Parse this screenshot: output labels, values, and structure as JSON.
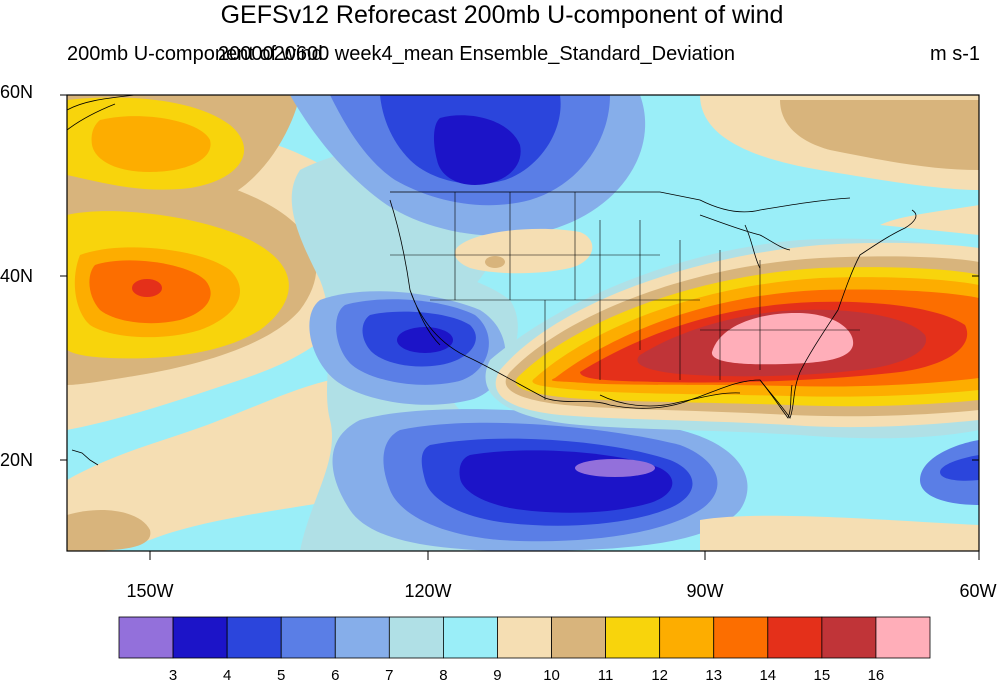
{
  "title": "GEFSv12 Reforecast 200mb U-component of wind",
  "subtitle_left": "200mb U-component of wind",
  "subtitle_center": "2000020600 week4_mean Ensemble_Standard_Deviation",
  "units": "m s-1",
  "lat_labels": [
    "60N",
    "40N",
    "20N"
  ],
  "lon_labels": [
    "150W",
    "120W",
    "90W",
    "60W"
  ],
  "colorbar": {
    "levels": [
      "3",
      "4",
      "5",
      "6",
      "7",
      "8",
      "9",
      "10",
      "11",
      "12",
      "13",
      "14",
      "15",
      "16"
    ],
    "colors": [
      "#9370db",
      "#1c14c8",
      "#2b45dc",
      "#5a7ee6",
      "#86aeea",
      "#b0e0e6",
      "#9aeef8",
      "#f5deb3",
      "#d8b47c",
      "#f8d40c",
      "#fdad00",
      "#fc6e00",
      "#e4301a",
      "#c03438",
      "#ffaeb9"
    ]
  },
  "field_colors": {
    "c3": "#9370db",
    "c4": "#1c14c8",
    "c5": "#2b45dc",
    "c6": "#5a7ee6",
    "c7": "#86aeea",
    "c8": "#b0e0e6",
    "c9": "#9aeef8",
    "c10": "#f5deb3",
    "c11": "#d8b47c",
    "c12": "#f8d40c",
    "c13": "#fdad00",
    "c14": "#fc6e00",
    "c15": "#e4301a",
    "c16": "#c03438",
    "c17": "#ffaeb9"
  }
}
